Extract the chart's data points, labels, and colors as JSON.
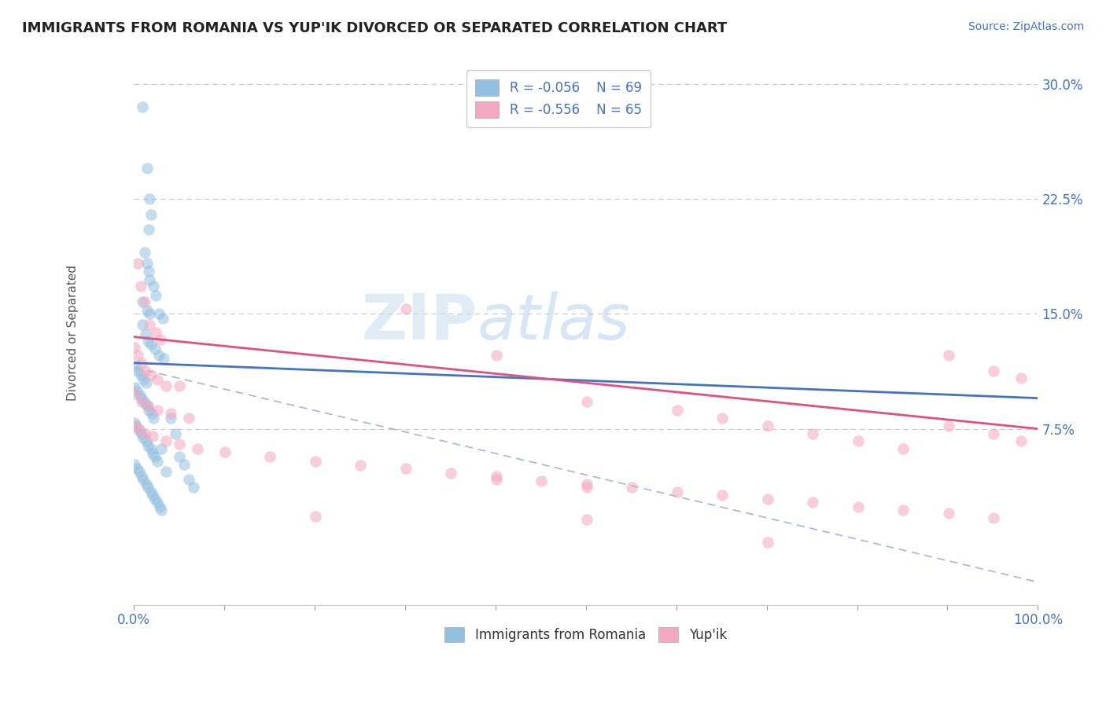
{
  "title": "IMMIGRANTS FROM ROMANIA VS YUP'IK DIVORCED OR SEPARATED CORRELATION CHART",
  "source_text": "Source: ZipAtlas.com",
  "ylabel": "Divorced or Separated",
  "xlim": [
    0.0,
    1.0
  ],
  "ylim": [
    -0.04,
    0.315
  ],
  "blue_color": "#92C0E0",
  "pink_color": "#F4A7C0",
  "blue_line_color": "#4472C4",
  "pink_line_color": "#E05080",
  "dash_color": "#A0B8D8",
  "blue_trend": [
    0.118,
    0.095
  ],
  "pink_trend": [
    0.135,
    0.075
  ],
  "dash_trend": [
    0.115,
    -0.025
  ],
  "blue_scatter": [
    [
      0.01,
      0.285
    ],
    [
      0.015,
      0.245
    ],
    [
      0.018,
      0.225
    ],
    [
      0.019,
      0.215
    ],
    [
      0.017,
      0.205
    ],
    [
      0.012,
      0.19
    ],
    [
      0.015,
      0.183
    ],
    [
      0.017,
      0.178
    ],
    [
      0.018,
      0.172
    ],
    [
      0.022,
      0.168
    ],
    [
      0.025,
      0.162
    ],
    [
      0.01,
      0.158
    ],
    [
      0.015,
      0.152
    ],
    [
      0.018,
      0.15
    ],
    [
      0.028,
      0.15
    ],
    [
      0.032,
      0.147
    ],
    [
      0.01,
      0.143
    ],
    [
      0.013,
      0.137
    ],
    [
      0.016,
      0.132
    ],
    [
      0.019,
      0.13
    ],
    [
      0.024,
      0.127
    ],
    [
      0.028,
      0.123
    ],
    [
      0.033,
      0.121
    ],
    [
      0.002,
      0.116
    ],
    [
      0.005,
      0.113
    ],
    [
      0.008,
      0.11
    ],
    [
      0.011,
      0.107
    ],
    [
      0.014,
      0.105
    ],
    [
      0.001,
      0.102
    ],
    [
      0.004,
      0.1
    ],
    [
      0.007,
      0.097
    ],
    [
      0.009,
      0.095
    ],
    [
      0.012,
      0.092
    ],
    [
      0.015,
      0.09
    ],
    [
      0.017,
      0.087
    ],
    [
      0.02,
      0.085
    ],
    [
      0.022,
      0.082
    ],
    [
      0.001,
      0.079
    ],
    [
      0.003,
      0.077
    ],
    [
      0.006,
      0.074
    ],
    [
      0.009,
      0.072
    ],
    [
      0.011,
      0.069
    ],
    [
      0.014,
      0.067
    ],
    [
      0.016,
      0.064
    ],
    [
      0.019,
      0.062
    ],
    [
      0.021,
      0.059
    ],
    [
      0.024,
      0.057
    ],
    [
      0.026,
      0.054
    ],
    [
      0.001,
      0.052
    ],
    [
      0.004,
      0.049
    ],
    [
      0.006,
      0.047
    ],
    [
      0.009,
      0.044
    ],
    [
      0.011,
      0.042
    ],
    [
      0.014,
      0.039
    ],
    [
      0.016,
      0.037
    ],
    [
      0.019,
      0.034
    ],
    [
      0.021,
      0.032
    ],
    [
      0.024,
      0.029
    ],
    [
      0.026,
      0.027
    ],
    [
      0.029,
      0.024
    ],
    [
      0.031,
      0.022
    ],
    [
      0.031,
      0.062
    ],
    [
      0.036,
      0.047
    ],
    [
      0.041,
      0.082
    ],
    [
      0.046,
      0.072
    ],
    [
      0.051,
      0.057
    ],
    [
      0.056,
      0.052
    ],
    [
      0.061,
      0.042
    ],
    [
      0.066,
      0.037
    ]
  ],
  "pink_scatter": [
    [
      0.005,
      0.183
    ],
    [
      0.008,
      0.168
    ],
    [
      0.012,
      0.158
    ],
    [
      0.018,
      0.143
    ],
    [
      0.025,
      0.138
    ],
    [
      0.03,
      0.133
    ],
    [
      0.001,
      0.128
    ],
    [
      0.005,
      0.123
    ],
    [
      0.009,
      0.118
    ],
    [
      0.013,
      0.113
    ],
    [
      0.019,
      0.11
    ],
    [
      0.026,
      0.107
    ],
    [
      0.036,
      0.103
    ],
    [
      0.051,
      0.103
    ],
    [
      0.001,
      0.098
    ],
    [
      0.009,
      0.093
    ],
    [
      0.016,
      0.09
    ],
    [
      0.026,
      0.087
    ],
    [
      0.041,
      0.085
    ],
    [
      0.061,
      0.082
    ],
    [
      0.001,
      0.077
    ],
    [
      0.006,
      0.075
    ],
    [
      0.013,
      0.072
    ],
    [
      0.021,
      0.07
    ],
    [
      0.036,
      0.067
    ],
    [
      0.051,
      0.065
    ],
    [
      0.071,
      0.062
    ],
    [
      0.101,
      0.06
    ],
    [
      0.151,
      0.057
    ],
    [
      0.201,
      0.054
    ],
    [
      0.251,
      0.051
    ],
    [
      0.301,
      0.049
    ],
    [
      0.351,
      0.046
    ],
    [
      0.401,
      0.044
    ],
    [
      0.451,
      0.041
    ],
    [
      0.501,
      0.039
    ],
    [
      0.551,
      0.037
    ],
    [
      0.601,
      0.034
    ],
    [
      0.651,
      0.032
    ],
    [
      0.701,
      0.029
    ],
    [
      0.751,
      0.027
    ],
    [
      0.801,
      0.024
    ],
    [
      0.851,
      0.022
    ],
    [
      0.901,
      0.02
    ],
    [
      0.951,
      0.017
    ],
    [
      0.301,
      0.153
    ],
    [
      0.401,
      0.123
    ],
    [
      0.501,
      0.093
    ],
    [
      0.601,
      0.087
    ],
    [
      0.651,
      0.082
    ],
    [
      0.701,
      0.077
    ],
    [
      0.751,
      0.072
    ],
    [
      0.801,
      0.067
    ],
    [
      0.851,
      0.062
    ],
    [
      0.901,
      0.123
    ],
    [
      0.951,
      0.113
    ],
    [
      0.981,
      0.108
    ],
    [
      0.901,
      0.077
    ],
    [
      0.951,
      0.072
    ],
    [
      0.981,
      0.067
    ],
    [
      0.401,
      0.042
    ],
    [
      0.501,
      0.037
    ],
    [
      0.201,
      0.018
    ],
    [
      0.501,
      0.016
    ],
    [
      0.701,
      0.001
    ]
  ],
  "watermark_zip": "ZIP",
  "watermark_atlas": "atlas",
  "background_color": "#ffffff",
  "grid_color": "#c8c8c8"
}
